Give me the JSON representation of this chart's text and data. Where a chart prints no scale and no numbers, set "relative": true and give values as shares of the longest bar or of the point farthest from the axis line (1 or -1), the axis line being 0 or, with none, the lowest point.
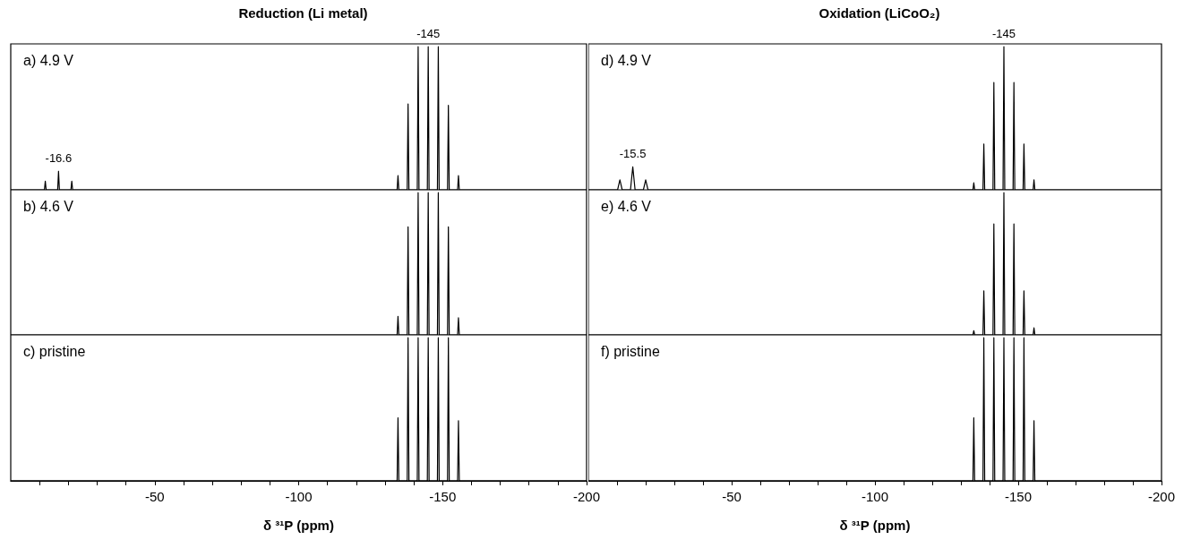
{
  "chart_data": [
    {
      "type": "line",
      "title": "Reduction (Li metal)",
      "relative": true,
      "xlim": [
        0,
        -200
      ],
      "tick_labels": false,
      "xticks": [
        {
          "value": -10,
          "label": null
        },
        {
          "value": -20,
          "label": null
        },
        {
          "value": -30,
          "label": null
        },
        {
          "value": -40,
          "label": null
        },
        -50,
        {
          "value": -60,
          "label": null
        },
        {
          "value": -70,
          "label": null
        },
        {
          "value": -80,
          "label": null
        },
        {
          "value": -90,
          "label": null
        },
        -100,
        {
          "value": -110,
          "label": null
        },
        {
          "value": -120,
          "label": null
        },
        {
          "value": -130,
          "label": null
        },
        {
          "value": -140,
          "label": null
        },
        -150,
        {
          "value": -160,
          "label": null
        },
        {
          "value": -170,
          "label": null
        },
        {
          "value": -180,
          "label": null
        },
        {
          "value": -190,
          "label": null
        },
        -200
      ],
      "annotations": [
        "a) 4.9 V",
        {
          "text": "-16.6",
          "x": -16.6,
          "y": 0.13
        },
        {
          "text": "-145",
          "x": -145,
          "y": 1
        }
      ],
      "series": [
        {
          "color": "#000000",
          "x": [
            0,
            -11.7,
            -12,
            -12.3,
            -16.3,
            -16.6,
            -16.9,
            -20.9,
            -21.2,
            -21.5,
            -134.2,
            -134.5,
            -134.8,
            -137.7,
            -138,
            -138.3,
            -141.2,
            -141.5,
            -141.8,
            -144.7,
            -145,
            -145.3,
            -148.2,
            -148.5,
            -148.8,
            -151.7,
            -152,
            -152.3,
            -155.2,
            -155.5,
            -155.8,
            -200
          ],
          "values": [
            0,
            0,
            0.06,
            0,
            0,
            0.13,
            0,
            0,
            0.06,
            0,
            0,
            0.1,
            0,
            0,
            0.6,
            0,
            0,
            1,
            0,
            0,
            1,
            0,
            0,
            1,
            0,
            0,
            0.59,
            0,
            0,
            0.1,
            0,
            0
          ]
        }
      ]
    },
    {
      "type": "line",
      "title": "Oxidation (LiCoO₂)",
      "relative": true,
      "xlim": [
        0,
        -200
      ],
      "tick_labels": false,
      "xticks": [
        {
          "value": -10,
          "label": null
        },
        {
          "value": -20,
          "label": null
        },
        {
          "value": -30,
          "label": null
        },
        {
          "value": -40,
          "label": null
        },
        -50,
        {
          "value": -60,
          "label": null
        },
        {
          "value": -70,
          "label": null
        },
        {
          "value": -80,
          "label": null
        },
        {
          "value": -90,
          "label": null
        },
        -100,
        {
          "value": -110,
          "label": null
        },
        {
          "value": -120,
          "label": null
        },
        {
          "value": -130,
          "label": null
        },
        {
          "value": -140,
          "label": null
        },
        -150,
        {
          "value": -160,
          "label": null
        },
        {
          "value": -170,
          "label": null
        },
        {
          "value": -180,
          "label": null
        },
        {
          "value": -190,
          "label": null
        },
        -200
      ],
      "annotations": [
        "d) 4.9 V",
        {
          "text": "-15.5",
          "x": -15.5,
          "y": 0.16
        },
        {
          "text": "-145",
          "x": -145,
          "y": 1
        }
      ],
      "series": [
        {
          "color": "#000000",
          "x": [
            0,
            -10.2,
            -11,
            -11.8,
            -14.7,
            -15.5,
            -16.3,
            -19.2,
            -20,
            -20.8,
            -134.2,
            -134.5,
            -134.8,
            -137.7,
            -138,
            -138.3,
            -141.2,
            -141.5,
            -141.8,
            -144.7,
            -145,
            -145.3,
            -148.2,
            -148.5,
            -148.8,
            -151.7,
            -152,
            -152.3,
            -155.2,
            -155.5,
            -155.8,
            -200
          ],
          "values": [
            0,
            0,
            0.07,
            0,
            0,
            0.16,
            0,
            0,
            0.07,
            0,
            0,
            0.05,
            0,
            0,
            0.32,
            0,
            0,
            0.75,
            0,
            0,
            1,
            0,
            0,
            0.75,
            0,
            0,
            0.32,
            0,
            0,
            0.07,
            0,
            0
          ]
        }
      ]
    },
    {
      "type": "line",
      "relative": true,
      "xlim": [
        0,
        -200
      ],
      "tick_labels": false,
      "xticks": [
        {
          "value": -10,
          "label": null
        },
        {
          "value": -20,
          "label": null
        },
        {
          "value": -30,
          "label": null
        },
        {
          "value": -40,
          "label": null
        },
        -50,
        {
          "value": -60,
          "label": null
        },
        {
          "value": -70,
          "label": null
        },
        {
          "value": -80,
          "label": null
        },
        {
          "value": -90,
          "label": null
        },
        -100,
        {
          "value": -110,
          "label": null
        },
        {
          "value": -120,
          "label": null
        },
        {
          "value": -130,
          "label": null
        },
        {
          "value": -140,
          "label": null
        },
        -150,
        {
          "value": -160,
          "label": null
        },
        {
          "value": -170,
          "label": null
        },
        {
          "value": -180,
          "label": null
        },
        {
          "value": -190,
          "label": null
        },
        -200
      ],
      "annotations": [
        "b) 4.6 V"
      ],
      "series": [
        {
          "color": "#000000",
          "x": [
            0,
            -134.2,
            -134.5,
            -134.8,
            -137.7,
            -138,
            -138.3,
            -141.2,
            -141.5,
            -141.8,
            -144.7,
            -145,
            -145.3,
            -148.2,
            -148.5,
            -148.8,
            -151.7,
            -152,
            -152.3,
            -155.2,
            -155.5,
            -155.8,
            -200
          ],
          "values": [
            0,
            0,
            0.13,
            0,
            0,
            0.76,
            0,
            0,
            1,
            0,
            0,
            1,
            0,
            0,
            1,
            0,
            0,
            0.76,
            0,
            0,
            0.12,
            0,
            0
          ]
        }
      ]
    },
    {
      "type": "line",
      "relative": true,
      "xlim": [
        0,
        -200
      ],
      "tick_labels": false,
      "xticks": [
        {
          "value": -10,
          "label": null
        },
        {
          "value": -20,
          "label": null
        },
        {
          "value": -30,
          "label": null
        },
        {
          "value": -40,
          "label": null
        },
        -50,
        {
          "value": -60,
          "label": null
        },
        {
          "value": -70,
          "label": null
        },
        {
          "value": -80,
          "label": null
        },
        {
          "value": -90,
          "label": null
        },
        -100,
        {
          "value": -110,
          "label": null
        },
        {
          "value": -120,
          "label": null
        },
        {
          "value": -130,
          "label": null
        },
        {
          "value": -140,
          "label": null
        },
        -150,
        {
          "value": -160,
          "label": null
        },
        {
          "value": -170,
          "label": null
        },
        {
          "value": -180,
          "label": null
        },
        {
          "value": -190,
          "label": null
        },
        -200
      ],
      "annotations": [
        "e) 4.6 V"
      ],
      "series": [
        {
          "color": "#000000",
          "x": [
            0,
            -134.2,
            -134.5,
            -134.8,
            -137.7,
            -138,
            -138.3,
            -141.2,
            -141.5,
            -141.8,
            -144.7,
            -145,
            -145.3,
            -148.2,
            -148.5,
            -148.8,
            -151.7,
            -152,
            -152.3,
            -155.2,
            -155.5,
            -155.8,
            -200
          ],
          "values": [
            0,
            0,
            0.03,
            0,
            0,
            0.31,
            0,
            0,
            0.78,
            0,
            0,
            1,
            0,
            0,
            0.78,
            0,
            0,
            0.31,
            0,
            0,
            0.05,
            0,
            0
          ]
        }
      ]
    },
    {
      "type": "line",
      "xlabel": "δ ³¹P (ppm)",
      "relative": true,
      "xlim": [
        0,
        -200
      ],
      "tick_labels": "x",
      "xticks": [
        {
          "value": -10,
          "label": null
        },
        {
          "value": -20,
          "label": null
        },
        {
          "value": -30,
          "label": null
        },
        {
          "value": -40,
          "label": null
        },
        -50,
        {
          "value": -60,
          "label": null
        },
        {
          "value": -70,
          "label": null
        },
        {
          "value": -80,
          "label": null
        },
        {
          "value": -90,
          "label": null
        },
        -100,
        {
          "value": -110,
          "label": null
        },
        {
          "value": -120,
          "label": null
        },
        {
          "value": -130,
          "label": null
        },
        {
          "value": -140,
          "label": null
        },
        -150,
        {
          "value": -160,
          "label": null
        },
        {
          "value": -170,
          "label": null
        },
        {
          "value": -180,
          "label": null
        },
        {
          "value": -190,
          "label": null
        },
        -200
      ],
      "annotations": [
        "c) pristine"
      ],
      "series": [
        {
          "color": "#000000",
          "x": [
            0,
            -134.2,
            -134.5,
            -134.8,
            -137.7,
            -138,
            -138.3,
            -141.2,
            -141.5,
            -141.8,
            -144.7,
            -145,
            -145.3,
            -148.2,
            -148.5,
            -148.8,
            -151.7,
            -152,
            -152.3,
            -155.2,
            -155.5,
            -155.8,
            -200
          ],
          "values": [
            0,
            0,
            0.44,
            0,
            0,
            1,
            0,
            0,
            1,
            0,
            0,
            1,
            0,
            0,
            1,
            0,
            0,
            1,
            0,
            0,
            0.42,
            0,
            0
          ]
        }
      ]
    },
    {
      "type": "line",
      "xlabel": "δ ³¹P (ppm)",
      "relative": true,
      "xlim": [
        0,
        -200
      ],
      "tick_labels": "x",
      "xticks": [
        {
          "value": -10,
          "label": null
        },
        {
          "value": -20,
          "label": null
        },
        {
          "value": -30,
          "label": null
        },
        {
          "value": -40,
          "label": null
        },
        -50,
        {
          "value": -60,
          "label": null
        },
        {
          "value": -70,
          "label": null
        },
        {
          "value": -80,
          "label": null
        },
        {
          "value": -90,
          "label": null
        },
        -100,
        {
          "value": -110,
          "label": null
        },
        {
          "value": -120,
          "label": null
        },
        {
          "value": -130,
          "label": null
        },
        {
          "value": -140,
          "label": null
        },
        -150,
        {
          "value": -160,
          "label": null
        },
        {
          "value": -170,
          "label": null
        },
        {
          "value": -180,
          "label": null
        },
        {
          "value": -190,
          "label": null
        },
        -200
      ],
      "annotations": [
        "f) pristine"
      ],
      "series": [
        {
          "color": "#000000",
          "x": [
            0,
            -134.2,
            -134.5,
            -134.8,
            -137.7,
            -138,
            -138.3,
            -141.2,
            -141.5,
            -141.8,
            -144.7,
            -145,
            -145.3,
            -148.2,
            -148.5,
            -148.8,
            -151.7,
            -152,
            -152.3,
            -155.2,
            -155.5,
            -155.8,
            -200
          ],
          "values": [
            0,
            0,
            0.44,
            0,
            0,
            1,
            0,
            0,
            1,
            0,
            0,
            1,
            0,
            0,
            1,
            0,
            0,
            1,
            0,
            0,
            0.42,
            0,
            0
          ]
        }
      ]
    }
  ]
}
